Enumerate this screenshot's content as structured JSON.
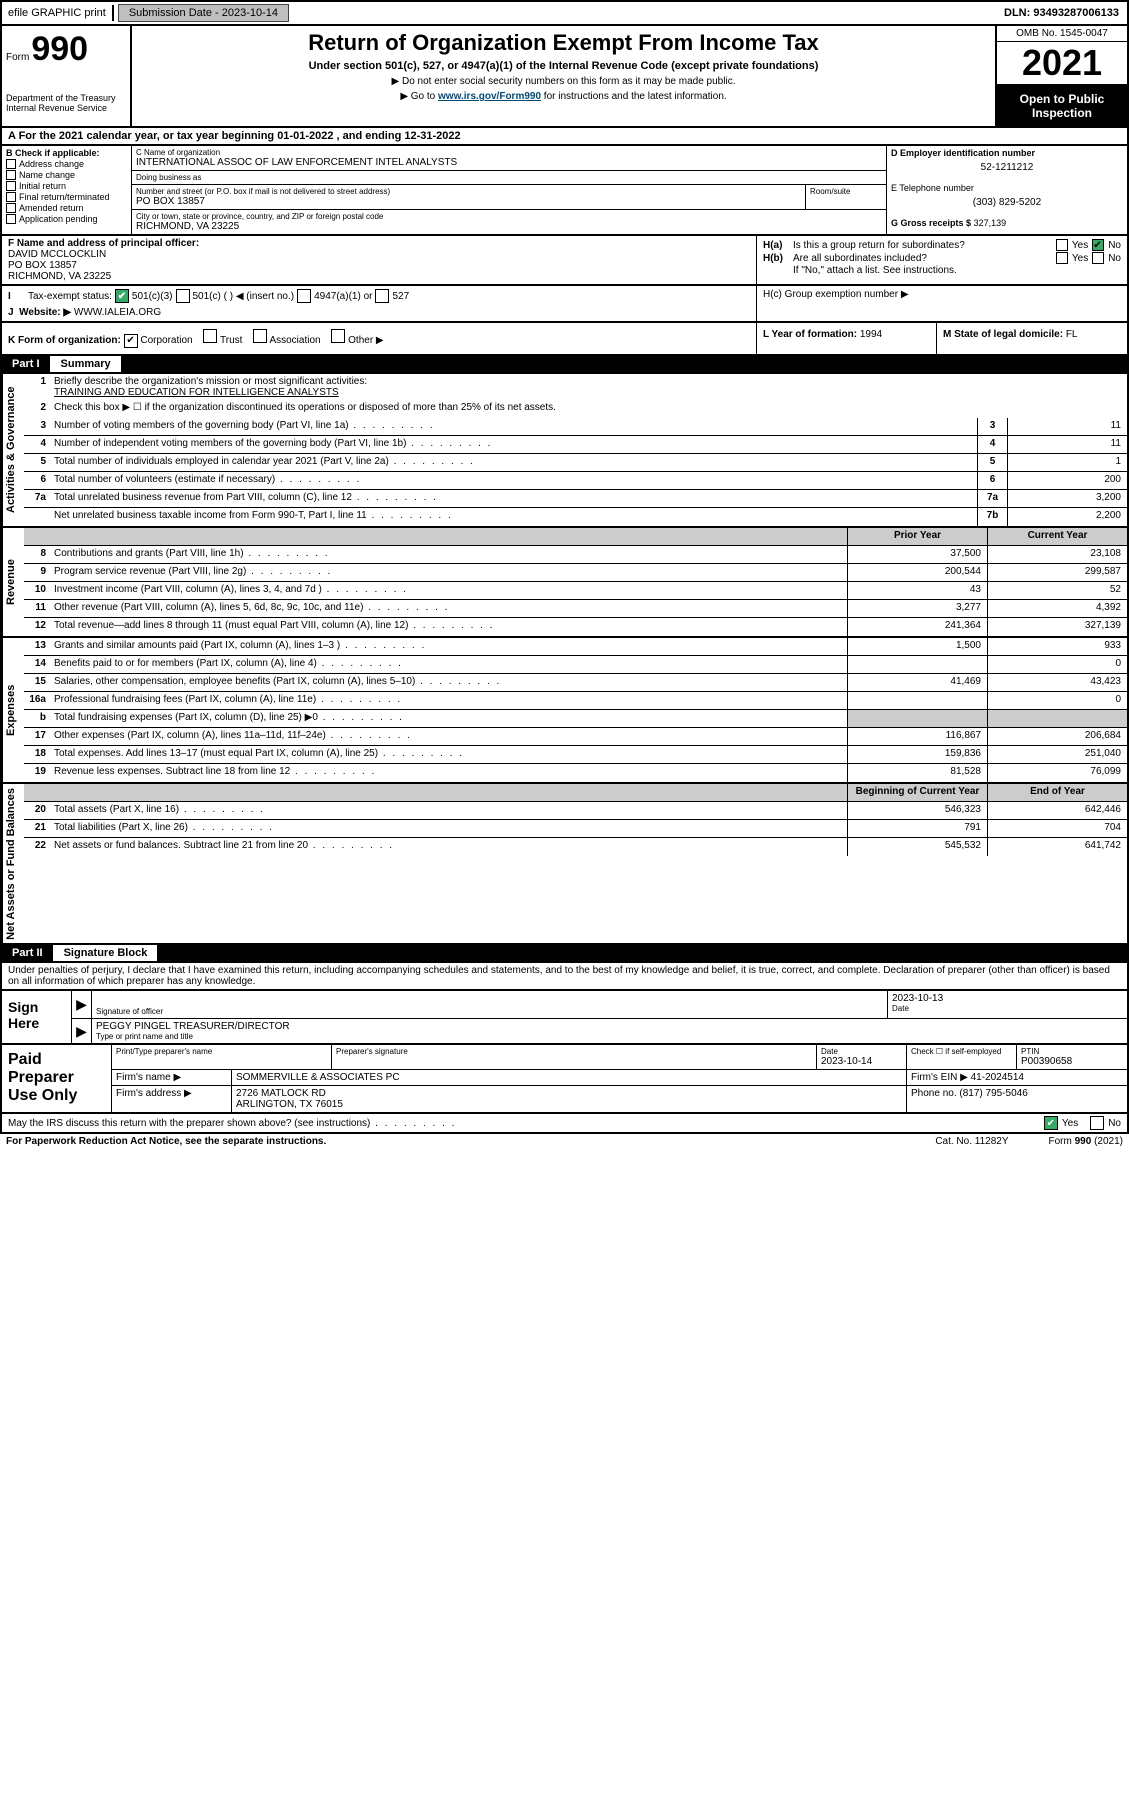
{
  "topbar": {
    "efile": "efile GRAPHIC print",
    "submission_label": "Submission Date - 2023-10-14",
    "dln": "DLN: 93493287006133"
  },
  "header": {
    "form_word": "Form",
    "form_number": "990",
    "dept": "Department of the Treasury Internal Revenue Service",
    "title": "Return of Organization Exempt From Income Tax",
    "subtitle": "Under section 501(c), 527, or 4947(a)(1) of the Internal Revenue Code (except private foundations)",
    "note1": "▶ Do not enter social security numbers on this form as it may be made public.",
    "note2_pre": "▶ Go to ",
    "note2_link": "www.irs.gov/Form990",
    "note2_post": " for instructions and the latest information.",
    "omb": "OMB No. 1545-0047",
    "year": "2021",
    "inspect": "Open to Public Inspection"
  },
  "line_a": "A For the 2021 calendar year, or tax year beginning 01-01-2022   , and ending 12-31-2022",
  "col_b": {
    "head": "B Check if applicable:",
    "items": [
      "Address change",
      "Name change",
      "Initial return",
      "Final return/terminated",
      "Amended return",
      "Application pending"
    ]
  },
  "col_c": {
    "name_label": "C Name of organization",
    "name": "INTERNATIONAL ASSOC OF LAW ENFORCEMENT INTEL ANALYSTS",
    "dba_label": "Doing business as",
    "dba": "",
    "street_label": "Number and street (or P.O. box if mail is not delivered to street address)",
    "street": "PO BOX 13857",
    "room_label": "Room/suite",
    "city_label": "City or town, state or province, country, and ZIP or foreign postal code",
    "city": "RICHMOND, VA  23225"
  },
  "col_d": {
    "ein_label": "D Employer identification number",
    "ein": "52-1211212",
    "phone_label": "E Telephone number",
    "phone": "(303) 829-5202",
    "gross_label": "G Gross receipts $",
    "gross": "327,139"
  },
  "row_f": {
    "label": "F Name and address of principal officer:",
    "name": "DAVID MCCLOCKLIN",
    "addr1": "PO BOX 13857",
    "addr2": "RICHMOND, VA  23225"
  },
  "row_h": {
    "ha_label": "H(a)",
    "ha_q": "Is this a group return for subordinates?",
    "hb_label": "H(b)",
    "hb_q": "Are all subordinates included?",
    "note": "If \"No,\" attach a list. See instructions.",
    "hc_label": "H(c)",
    "hc_q": "Group exemption number ▶",
    "yes": "Yes",
    "no": "No"
  },
  "row_i": {
    "label": "Tax-exempt status:",
    "opts": [
      "501(c)(3)",
      "501(c) (  ) ◀ (insert no.)",
      "4947(a)(1) or",
      "527"
    ]
  },
  "row_j": {
    "label": "Website: ▶",
    "value": "WWW.IALEIA.ORG"
  },
  "row_k": {
    "label": "K Form of organization:",
    "opts": [
      "Corporation",
      "Trust",
      "Association",
      "Other ▶"
    ],
    "l_label": "L Year of formation:",
    "l_val": "1994",
    "m_label": "M State of legal domicile:",
    "m_val": "FL"
  },
  "part1": {
    "part": "Part I",
    "title": "Summary"
  },
  "summary": {
    "q1_label": "Briefly describe the organization's mission or most significant activities:",
    "q1_val": "TRAINING AND EDUCATION FOR INTELLIGENCE ANALYSTS",
    "q2": "Check this box ▶ ☐  if the organization discontinued its operations or disposed of more than 25% of its net assets.",
    "rows_gov": [
      {
        "n": "3",
        "d": "Number of voting members of the governing body (Part VI, line 1a)",
        "box": "3",
        "v": "11"
      },
      {
        "n": "4",
        "d": "Number of independent voting members of the governing body (Part VI, line 1b)",
        "box": "4",
        "v": "11"
      },
      {
        "n": "5",
        "d": "Total number of individuals employed in calendar year 2021 (Part V, line 2a)",
        "box": "5",
        "v": "1"
      },
      {
        "n": "6",
        "d": "Total number of volunteers (estimate if necessary)",
        "box": "6",
        "v": "200"
      },
      {
        "n": "7a",
        "d": "Total unrelated business revenue from Part VIII, column (C), line 12",
        "box": "7a",
        "v": "3,200"
      },
      {
        "n": "",
        "d": "Net unrelated business taxable income from Form 990-T, Part I, line 11",
        "box": "7b",
        "v": "2,200"
      }
    ],
    "header_prior": "Prior Year",
    "header_curr": "Current Year",
    "rows_rev": [
      {
        "n": "8",
        "d": "Contributions and grants (Part VIII, line 1h)",
        "p": "37,500",
        "c": "23,108"
      },
      {
        "n": "9",
        "d": "Program service revenue (Part VIII, line 2g)",
        "p": "200,544",
        "c": "299,587"
      },
      {
        "n": "10",
        "d": "Investment income (Part VIII, column (A), lines 3, 4, and 7d )",
        "p": "43",
        "c": "52"
      },
      {
        "n": "11",
        "d": "Other revenue (Part VIII, column (A), lines 5, 6d, 8c, 9c, 10c, and 11e)",
        "p": "3,277",
        "c": "4,392"
      },
      {
        "n": "12",
        "d": "Total revenue—add lines 8 through 11 (must equal Part VIII, column (A), line 12)",
        "p": "241,364",
        "c": "327,139"
      }
    ],
    "rows_exp": [
      {
        "n": "13",
        "d": "Grants and similar amounts paid (Part IX, column (A), lines 1–3 )",
        "p": "1,500",
        "c": "933"
      },
      {
        "n": "14",
        "d": "Benefits paid to or for members (Part IX, column (A), line 4)",
        "p": "",
        "c": "0"
      },
      {
        "n": "15",
        "d": "Salaries, other compensation, employee benefits (Part IX, column (A), lines 5–10)",
        "p": "41,469",
        "c": "43,423"
      },
      {
        "n": "16a",
        "d": "Professional fundraising fees (Part IX, column (A), line 11e)",
        "p": "",
        "c": "0"
      },
      {
        "n": "b",
        "d": "Total fundraising expenses (Part IX, column (D), line 25) ▶0",
        "p": "",
        "c": "",
        "shade": true
      },
      {
        "n": "17",
        "d": "Other expenses (Part IX, column (A), lines 11a–11d, 11f–24e)",
        "p": "116,867",
        "c": "206,684"
      },
      {
        "n": "18",
        "d": "Total expenses. Add lines 13–17 (must equal Part IX, column (A), line 25)",
        "p": "159,836",
        "c": "251,040"
      },
      {
        "n": "19",
        "d": "Revenue less expenses. Subtract line 18 from line 12",
        "p": "81,528",
        "c": "76,099"
      }
    ],
    "header_begin": "Beginning of Current Year",
    "header_end": "End of Year",
    "rows_net": [
      {
        "n": "20",
        "d": "Total assets (Part X, line 16)",
        "p": "546,323",
        "c": "642,446"
      },
      {
        "n": "21",
        "d": "Total liabilities (Part X, line 26)",
        "p": "791",
        "c": "704"
      },
      {
        "n": "22",
        "d": "Net assets or fund balances. Subtract line 21 from line 20",
        "p": "545,532",
        "c": "641,742"
      }
    ]
  },
  "vtabs": {
    "gov": "Activities & Governance",
    "rev": "Revenue",
    "exp": "Expenses",
    "net": "Net Assets or Fund Balances"
  },
  "part2": {
    "part": "Part II",
    "title": "Signature Block"
  },
  "sig_intro": "Under penalties of perjury, I declare that I have examined this return, including accompanying schedules and statements, and to the best of my knowledge and belief, it is true, correct, and complete. Declaration of preparer (other than officer) is based on all information of which preparer has any knowledge.",
  "sign": {
    "left": "Sign Here",
    "sig_label": "Signature of officer",
    "date_label": "Date",
    "date_val": "2023-10-13",
    "name_val": "PEGGY PINGEL  TREASURER/DIRECTOR",
    "name_label": "Type or print name and title"
  },
  "preparer": {
    "left": "Paid Preparer Use Only",
    "h1": "Print/Type preparer's name",
    "h2": "Preparer's signature",
    "h3": "Date",
    "h3v": "2023-10-14",
    "h4": "Check ☐ if self-employed",
    "h5": "PTIN",
    "h5v": "P00390658",
    "firm_name_label": "Firm's name    ▶",
    "firm_name": "SOMMERVILLE & ASSOCIATES PC",
    "firm_ein_label": "Firm's EIN ▶",
    "firm_ein": "41-2024514",
    "firm_addr_label": "Firm's address ▶",
    "firm_addr1": "2726 MATLOCK RD",
    "firm_addr2": "ARLINGTON, TX  76015",
    "phone_label": "Phone no.",
    "phone": "(817) 795-5046"
  },
  "footer": {
    "discuss": "May the IRS discuss this return with the preparer shown above? (see instructions)",
    "yes": "Yes",
    "no": "No",
    "paperwork": "For Paperwork Reduction Act Notice, see the separate instructions.",
    "cat": "Cat. No. 11282Y",
    "form": "Form 990 (2021)"
  }
}
